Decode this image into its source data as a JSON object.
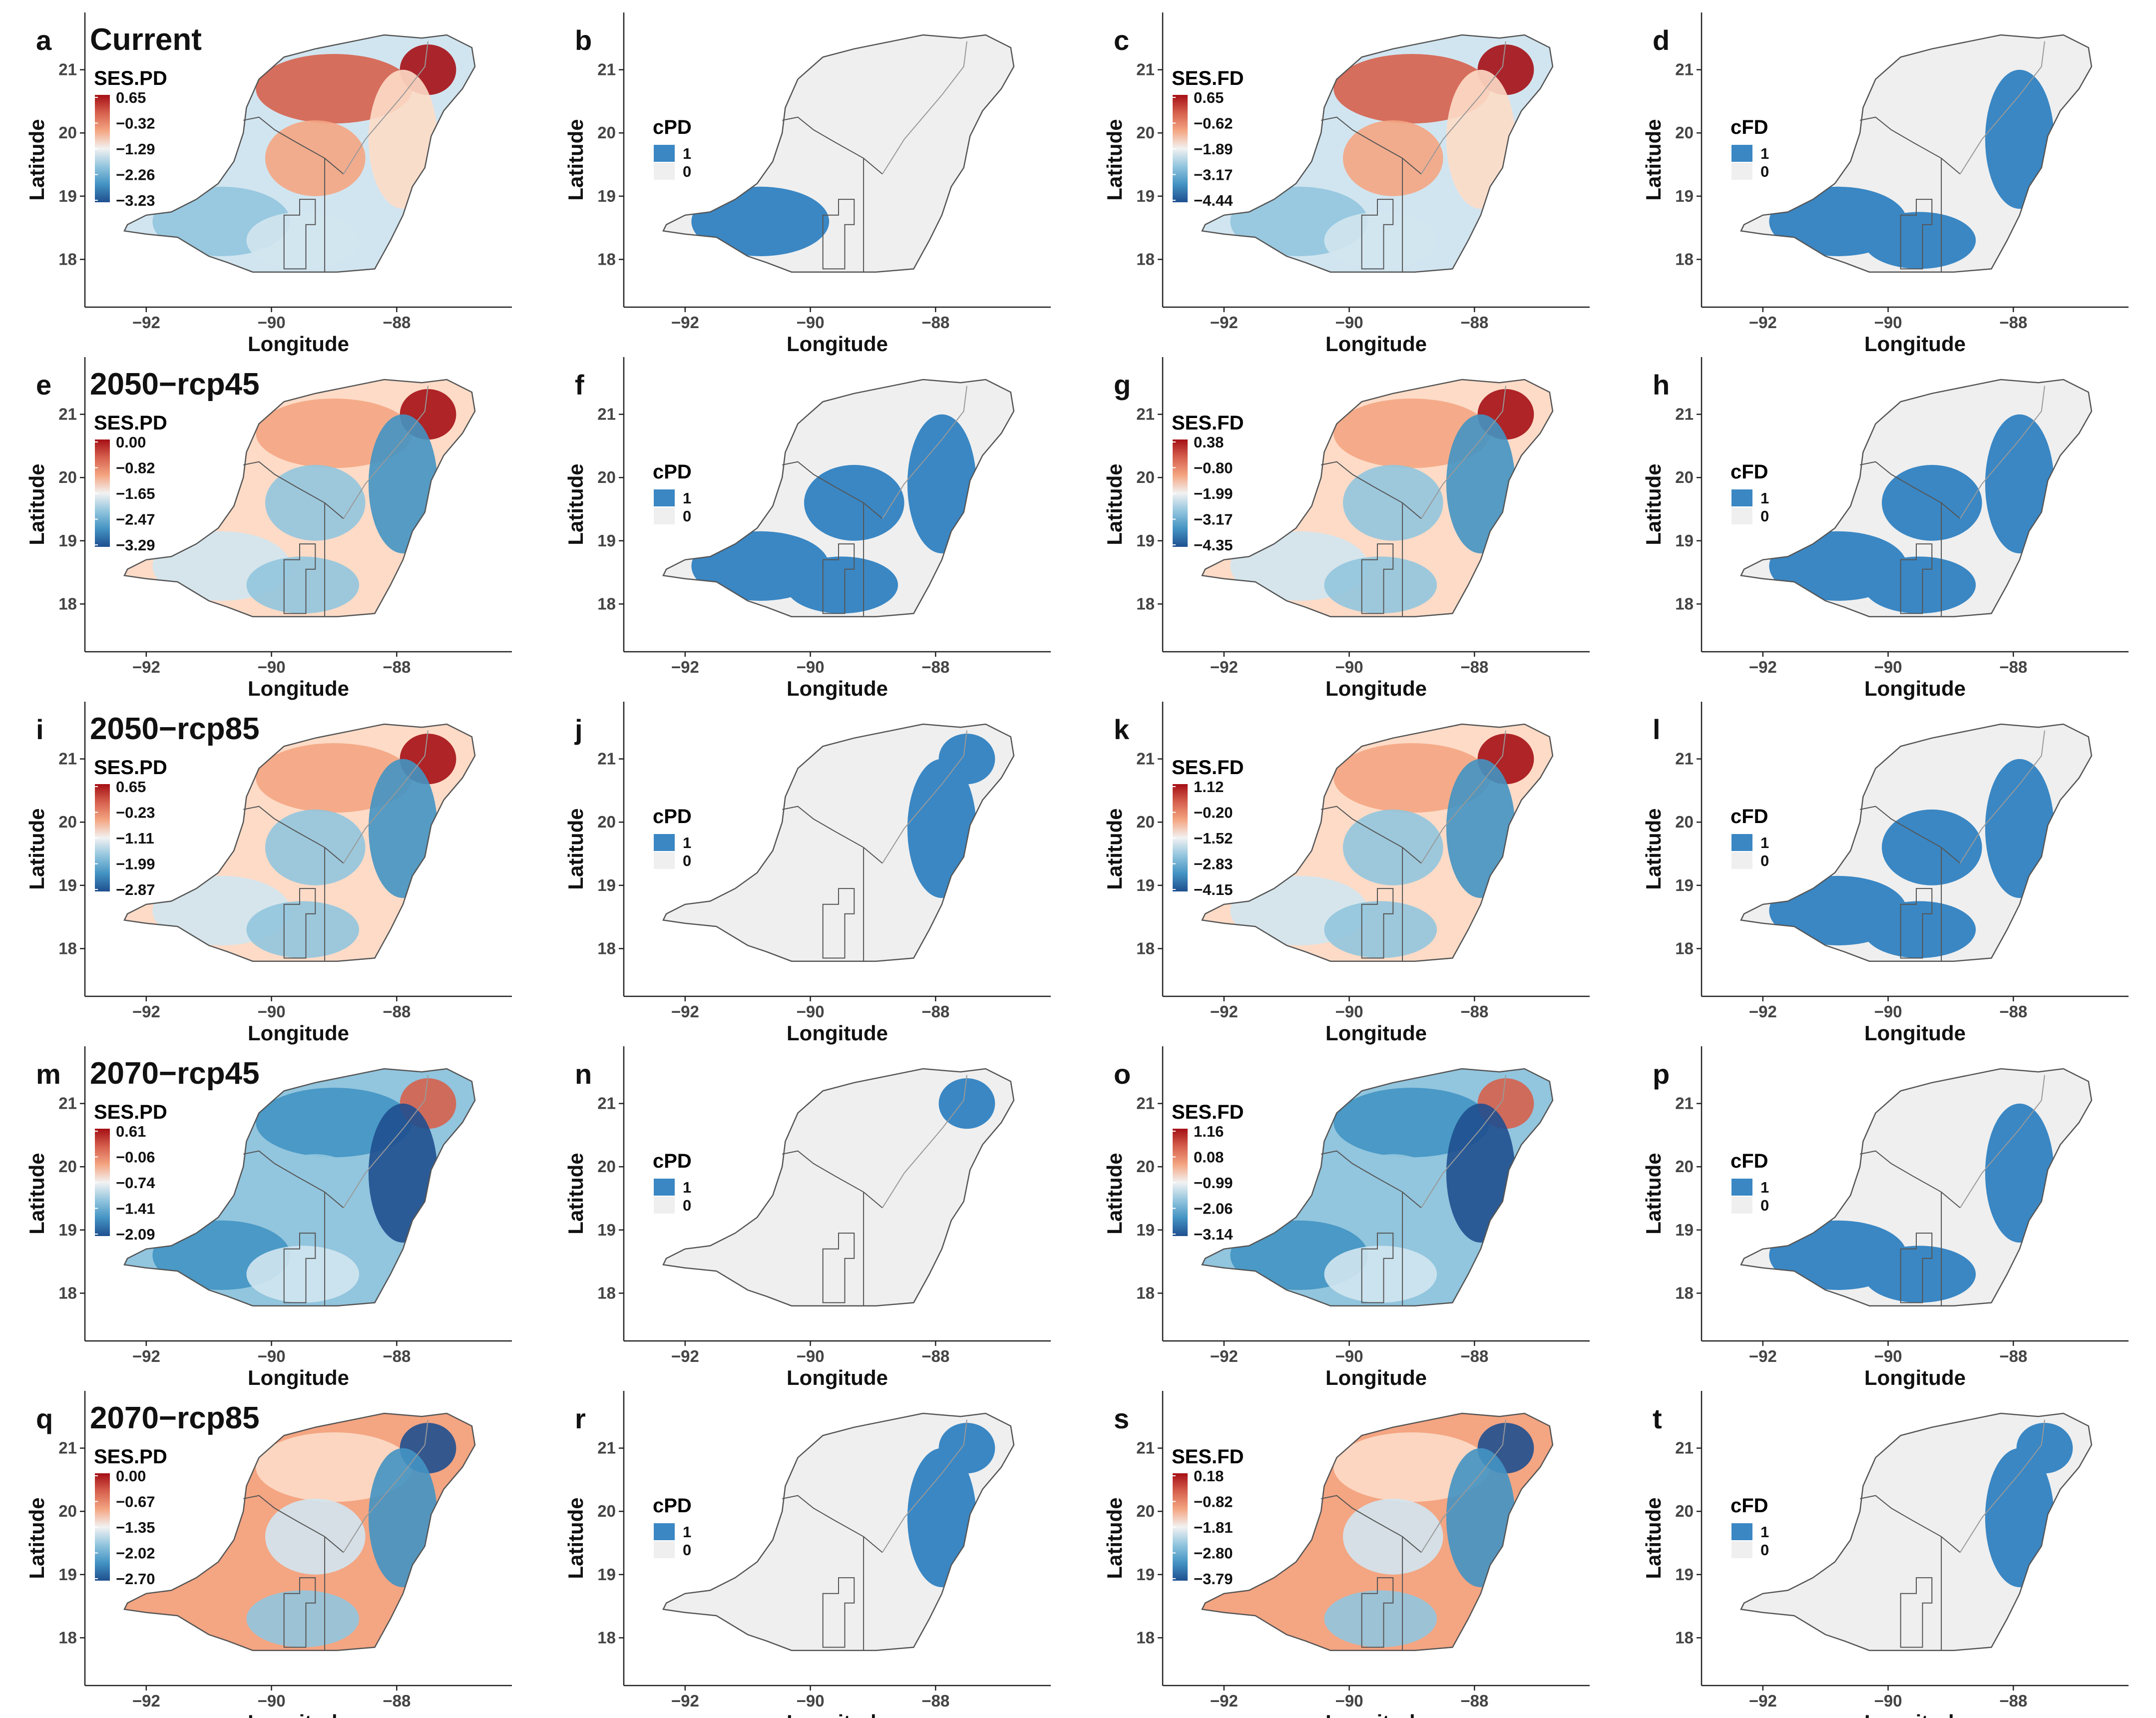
{
  "figure": {
    "rows": [
      {
        "scenario": "Current",
        "panels": [
          {
            "letter": "a",
            "metric": "SES.PD",
            "type": "continuous",
            "legend_values": [
              "0.65",
              "−0.32",
              "−1.29",
              "−2.26",
              "−3.23"
            ],
            "map_tone": "red-north"
          },
          {
            "letter": "b",
            "metric": "cPD",
            "type": "binary",
            "legend_values": [
              "1",
              "0"
            ],
            "map_tone": "sw-blue"
          },
          {
            "letter": "c",
            "metric": "SES.FD",
            "type": "continuous",
            "legend_values": [
              "0.65",
              "−0.62",
              "−1.89",
              "−3.17",
              "−4.44"
            ],
            "map_tone": "red-north"
          },
          {
            "letter": "d",
            "metric": "cFD",
            "type": "binary",
            "legend_values": [
              "1",
              "0"
            ],
            "map_tone": "south-band"
          }
        ]
      },
      {
        "scenario": "2050−rcp45",
        "panels": [
          {
            "letter": "e",
            "metric": "SES.PD",
            "type": "continuous",
            "legend_values": [
              "0.00",
              "−0.82",
              "−1.65",
              "−2.47",
              "−3.29"
            ],
            "map_tone": "mixed-blue"
          },
          {
            "letter": "f",
            "metric": "cPD",
            "type": "binary",
            "legend_values": [
              "1",
              "0"
            ],
            "map_tone": "large-blue"
          },
          {
            "letter": "g",
            "metric": "SES.FD",
            "type": "continuous",
            "legend_values": [
              "0.38",
              "−0.80",
              "−1.99",
              "−3.17",
              "−4.35"
            ],
            "map_tone": "mixed-blue"
          },
          {
            "letter": "h",
            "metric": "cFD",
            "type": "binary",
            "legend_values": [
              "1",
              "0"
            ],
            "map_tone": "large-blue"
          }
        ]
      },
      {
        "scenario": "2050−rcp85",
        "panels": [
          {
            "letter": "i",
            "metric": "SES.PD",
            "type": "continuous",
            "legend_values": [
              "0.65",
              "−0.23",
              "−1.11",
              "−1.99",
              "−2.87"
            ],
            "map_tone": "mixed-blue"
          },
          {
            "letter": "j",
            "metric": "cPD",
            "type": "binary",
            "legend_values": [
              "1",
              "0"
            ],
            "map_tone": "east-blue"
          },
          {
            "letter": "k",
            "metric": "SES.FD",
            "type": "continuous",
            "legend_values": [
              "1.12",
              "−0.20",
              "−1.52",
              "−2.83",
              "−4.15"
            ],
            "map_tone": "mixed-blue"
          },
          {
            "letter": "l",
            "metric": "cFD",
            "type": "binary",
            "legend_values": [
              "1",
              "0"
            ],
            "map_tone": "large-blue"
          }
        ]
      },
      {
        "scenario": "2070−rcp45",
        "panels": [
          {
            "letter": "m",
            "metric": "SES.PD",
            "type": "continuous",
            "legend_values": [
              "0.61",
              "−0.06",
              "−0.74",
              "−1.41",
              "−2.09"
            ],
            "map_tone": "blue-dominant"
          },
          {
            "letter": "n",
            "metric": "cPD",
            "type": "binary",
            "legend_values": [
              "1",
              "0"
            ],
            "map_tone": "sparse-blue"
          },
          {
            "letter": "o",
            "metric": "SES.FD",
            "type": "continuous",
            "legend_values": [
              "1.16",
              "0.08",
              "−0.99",
              "−2.06",
              "−3.14"
            ],
            "map_tone": "blue-dominant"
          },
          {
            "letter": "p",
            "metric": "cFD",
            "type": "binary",
            "legend_values": [
              "1",
              "0"
            ],
            "map_tone": "south-band"
          }
        ]
      },
      {
        "scenario": "2070−rcp85",
        "panels": [
          {
            "letter": "q",
            "metric": "SES.PD",
            "type": "continuous",
            "legend_values": [
              "0.00",
              "−0.67",
              "−1.35",
              "−2.02",
              "−2.70"
            ],
            "map_tone": "orange-west"
          },
          {
            "letter": "r",
            "metric": "cPD",
            "type": "binary",
            "legend_values": [
              "1",
              "0"
            ],
            "map_tone": "east-blue"
          },
          {
            "letter": "s",
            "metric": "SES.FD",
            "type": "continuous",
            "legend_values": [
              "0.18",
              "−0.82",
              "−1.81",
              "−2.80",
              "−3.79"
            ],
            "map_tone": "orange-west"
          },
          {
            "letter": "t",
            "metric": "cFD",
            "type": "binary",
            "legend_values": [
              "1",
              "0"
            ],
            "map_tone": "east-blue"
          }
        ]
      }
    ],
    "axes": {
      "x_title": "Longitude",
      "y_title": "Latitude",
      "x_ticks": [
        "−92",
        "−90",
        "−88"
      ],
      "y_ticks": [
        "18",
        "19",
        "20",
        "21"
      ]
    },
    "colors": {
      "red_dark": "#a50f15",
      "red": "#d6604d",
      "salmon": "#f4a582",
      "pale_red": "#fddbc7",
      "neutral": "#f2f2f2",
      "pale_blue": "#d1e5f0",
      "light_blue": "#92c5de",
      "blue": "#4393c3",
      "dark_blue": "#1f4f8f",
      "binary_one": "#3a87c4",
      "binary_zero": "#efefef",
      "border": "#555555"
    }
  }
}
